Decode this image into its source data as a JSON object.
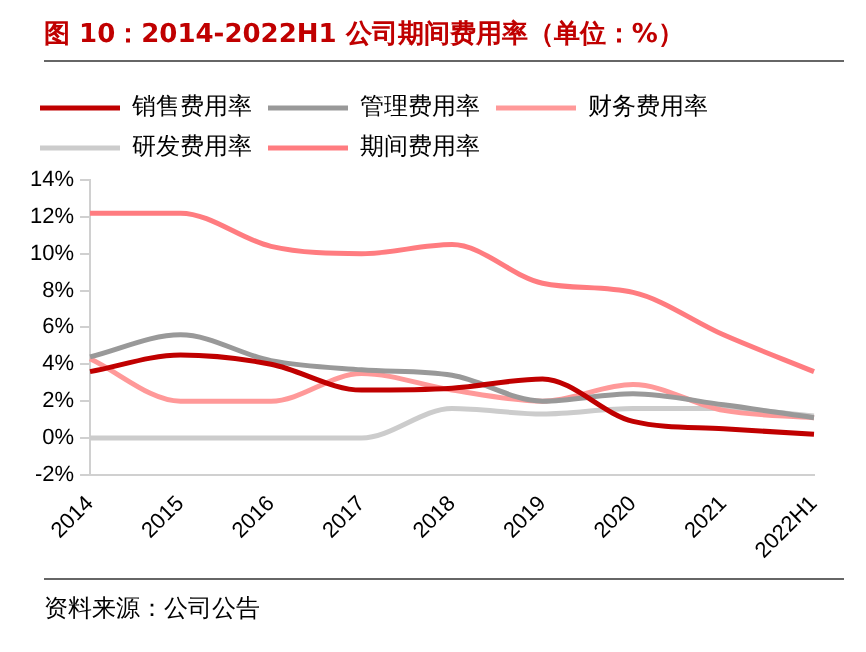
{
  "chart_data": {
    "type": "line",
    "title": "图 10：2014-2022H1 公司期间费用率（单位：%）",
    "categories": [
      "2014",
      "2015",
      "2016",
      "2017",
      "2018",
      "2019",
      "2020",
      "2021",
      "2022H1"
    ],
    "series": [
      {
        "name": "销售费用率",
        "color": "#c00000",
        "values": [
          3.6,
          4.5,
          4.0,
          2.6,
          2.7,
          3.2,
          0.9,
          0.5,
          0.2
        ]
      },
      {
        "name": "管理费用率",
        "color": "#999999",
        "values": [
          4.4,
          5.6,
          4.2,
          3.7,
          3.4,
          2.0,
          2.4,
          1.8,
          1.1
        ]
      },
      {
        "name": "财务费用率",
        "color": "#ff9999",
        "values": [
          4.3,
          2.0,
          2.0,
          3.5,
          2.6,
          2.0,
          2.9,
          1.5,
          1.1
        ]
      },
      {
        "name": "研发费用率",
        "color": "#cccccc",
        "values": [
          0,
          0,
          0,
          0,
          1.6,
          1.3,
          1.6,
          1.6,
          1.2
        ]
      },
      {
        "name": "期间费用率",
        "color": "#ff7c80",
        "values": [
          12.2,
          12.2,
          10.4,
          10.0,
          10.5,
          8.4,
          7.9,
          5.6,
          3.6
        ]
      }
    ],
    "ylim": [
      -2,
      14
    ],
    "yticks": [
      {
        "value": -2,
        "label": "-2%"
      },
      {
        "value": 0,
        "label": "0%"
      },
      {
        "value": 2,
        "label": "2%"
      },
      {
        "value": 4,
        "label": "4%"
      },
      {
        "value": 6,
        "label": "6%"
      },
      {
        "value": 8,
        "label": "8%"
      },
      {
        "value": 10,
        "label": "10%"
      },
      {
        "value": 12,
        "label": "12%"
      },
      {
        "value": 14,
        "label": "14%"
      }
    ],
    "grid": false,
    "legend": "top",
    "marker": "none",
    "line_style": "solid",
    "annotations": [
      "资料来源：公司公告"
    ]
  }
}
